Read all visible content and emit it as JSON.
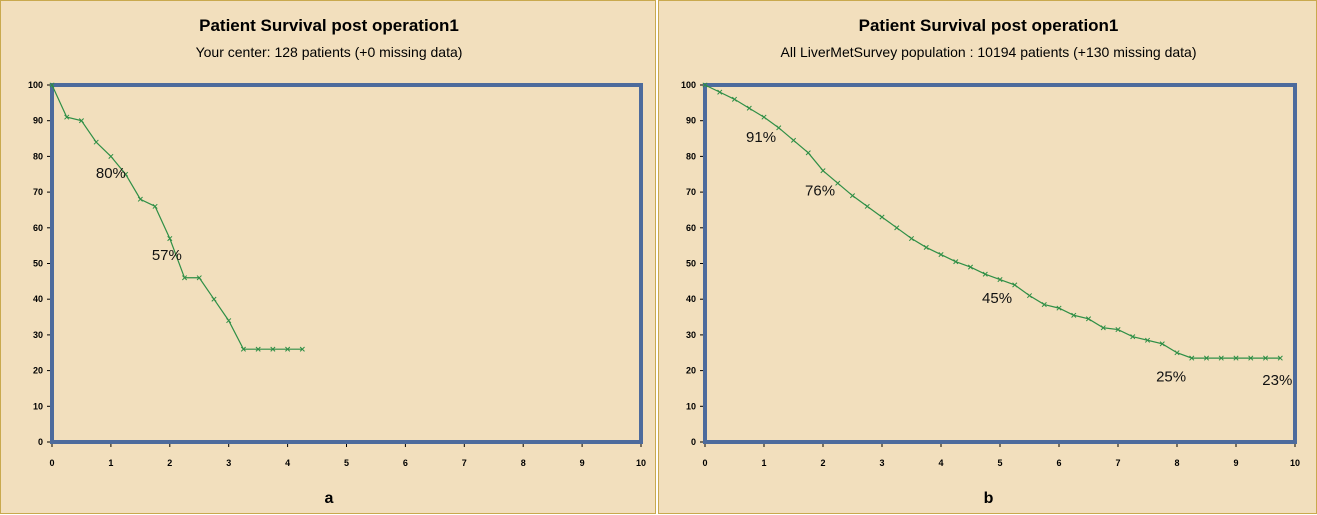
{
  "colors": {
    "background": "#f2dfbd",
    "frame": "#4d6b9c",
    "curve": "#2f8f46"
  },
  "chart_data": [
    {
      "type": "line",
      "title": "Patient Survival post operation1",
      "subtitle": "Your center: 128 patients (+0 missing data)",
      "panel_label": "a",
      "xlabel": "",
      "ylabel": "",
      "xlim": [
        0,
        10
      ],
      "ylim": [
        0,
        100
      ],
      "xticks": [
        "0",
        "1",
        "2",
        "3",
        "4",
        "5",
        "6",
        "7",
        "8",
        "9",
        "10"
      ],
      "yticks": [
        "0",
        "10",
        "20",
        "30",
        "40",
        "50",
        "60",
        "70",
        "80",
        "90",
        "100"
      ],
      "grid": false,
      "series": [
        {
          "x": [
            0,
            0.25,
            0.5,
            0.75,
            1.0,
            1.25,
            1.5,
            1.75,
            2.0,
            2.25,
            2.5,
            2.75,
            3.0,
            3.25,
            3.5,
            3.75,
            4.0,
            4.25
          ],
          "y": [
            100,
            91,
            90,
            84,
            80,
            75,
            68,
            66,
            57,
            46,
            46,
            40,
            34,
            26,
            26,
            26,
            26,
            26
          ]
        }
      ],
      "annotations": [
        {
          "text": "80%",
          "x": 1.0,
          "y": 74
        },
        {
          "text": "57%",
          "x": 1.95,
          "y": 51
        }
      ]
    },
    {
      "type": "line",
      "title": "Patient Survival post operation1",
      "subtitle": "All LiverMetSurvey population : 10194 patients (+130 missing data)",
      "panel_label": "b",
      "xlabel": "",
      "ylabel": "",
      "xlim": [
        0,
        10
      ],
      "ylim": [
        0,
        100
      ],
      "xticks": [
        "0",
        "1",
        "2",
        "3",
        "4",
        "5",
        "6",
        "7",
        "8",
        "9",
        "10"
      ],
      "yticks": [
        "0",
        "10",
        "20",
        "30",
        "40",
        "50",
        "60",
        "70",
        "80",
        "90",
        "100"
      ],
      "grid": false,
      "series": [
        {
          "x": [
            0,
            0.25,
            0.5,
            0.75,
            1.0,
            1.25,
            1.5,
            1.75,
            2.0,
            2.25,
            2.5,
            2.75,
            3.0,
            3.25,
            3.5,
            3.75,
            4.0,
            4.25,
            4.5,
            4.75,
            5.0,
            5.25,
            5.5,
            5.75,
            6.0,
            6.25,
            6.5,
            6.75,
            7.0,
            7.25,
            7.5,
            7.75,
            8.0,
            8.25,
            8.5,
            8.75,
            9.0,
            9.25,
            9.5,
            9.75
          ],
          "y": [
            100,
            98,
            96,
            93.5,
            91,
            88,
            84.5,
            81,
            76,
            72.5,
            69,
            66,
            63,
            60,
            57,
            54.5,
            52.5,
            50.5,
            49,
            47,
            45.5,
            44,
            41,
            38.5,
            37.5,
            35.5,
            34.5,
            32,
            31.5,
            29.5,
            28.5,
            27.5,
            25,
            23.5,
            23.5,
            23.5,
            23.5,
            23.5,
            23.5,
            23.5
          ]
        }
      ],
      "annotations": [
        {
          "text": "91%",
          "x": 0.95,
          "y": 84
        },
        {
          "text": "76%",
          "x": 1.95,
          "y": 69
        },
        {
          "text": "45%",
          "x": 4.95,
          "y": 39
        },
        {
          "text": "25%",
          "x": 7.9,
          "y": 17
        },
        {
          "text": "23%",
          "x": 9.7,
          "y": 16
        }
      ]
    }
  ]
}
